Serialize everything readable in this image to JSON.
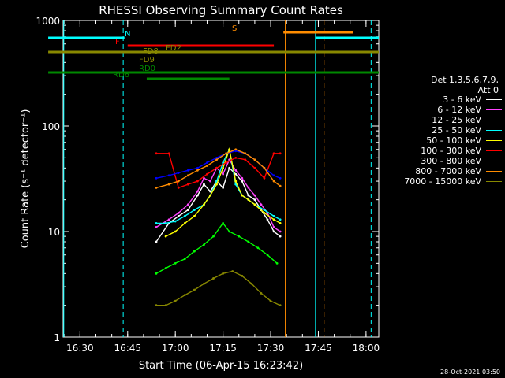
{
  "chart_data": {
    "type": "line",
    "title": "RHESSI Observing Summary Count Rates",
    "xlabel": "Start Time (06-Apr-15 16:23:42)",
    "ylabel": "Count Rate (s⁻¹ detector⁻¹)",
    "yscale": "log",
    "ylim": [
      1,
      1000
    ],
    "xlim_minutes_after_1620": [
      4.7,
      104
    ],
    "x_ticks": [
      "16:30",
      "16:45",
      "17:00",
      "17:15",
      "17:30",
      "17:45",
      "18:00"
    ],
    "y_ticks": [
      "1",
      "10",
      "100",
      "1000"
    ],
    "detectors_label": "Det 1,3,5,6,7,9,",
    "attenuator_label": "Att 0",
    "series": [
      {
        "name": "3 - 6 keV",
        "color": "#ffffff",
        "x": [
          34,
          38,
          41,
          44,
          47,
          49,
          51,
          53,
          55,
          57,
          59,
          61,
          63,
          65,
          67,
          69,
          71,
          73
        ],
        "y": [
          8,
          12,
          14,
          16,
          22,
          28,
          24,
          30,
          26,
          40,
          35,
          30,
          22,
          20,
          16,
          13,
          10,
          9
        ]
      },
      {
        "name": "6 - 12 keV",
        "color": "#ff44ff",
        "x": [
          34,
          38,
          41,
          44,
          47,
          49,
          51,
          53,
          55,
          57,
          59,
          61,
          63,
          65,
          67,
          69,
          71,
          73
        ],
        "y": [
          11,
          13,
          15,
          18,
          24,
          32,
          30,
          40,
          35,
          48,
          38,
          32,
          26,
          22,
          18,
          15,
          11,
          10
        ]
      },
      {
        "name": "12 - 25 keV",
        "color": "#00ff00",
        "x": [
          34,
          37,
          40,
          43,
          46,
          49,
          52,
          55,
          57,
          60,
          63,
          66,
          69,
          72
        ],
        "y": [
          4,
          4.5,
          5,
          5.5,
          6.5,
          7.5,
          9,
          12,
          10,
          9,
          8,
          7,
          6,
          5
        ]
      },
      {
        "name": "25 - 50 keV",
        "color": "#00ffff",
        "x": [
          34,
          37,
          40,
          43,
          46,
          49,
          51,
          53,
          55,
          57,
          59,
          61,
          63,
          65,
          68,
          71,
          73
        ],
        "y": [
          12,
          12,
          12.5,
          14,
          16,
          18,
          22,
          30,
          45,
          60,
          28,
          22,
          20,
          18,
          16,
          14,
          13
        ]
      },
      {
        "name": "50 - 100 keV",
        "color": "#ffff00",
        "x": [
          37,
          40,
          43,
          46,
          49,
          51,
          53,
          55,
          57,
          59,
          61,
          63,
          65,
          68,
          71,
          73
        ],
        "y": [
          9,
          10,
          12,
          14,
          18,
          22,
          28,
          40,
          60,
          30,
          22,
          20,
          18,
          15,
          13,
          12
        ]
      },
      {
        "name": "100 - 300 keV",
        "color": "#ff0000",
        "x": [
          34,
          38,
          41,
          44,
          47,
          50,
          53,
          56,
          59,
          62,
          65,
          68,
          71,
          73
        ],
        "y": [
          55,
          55,
          26,
          28,
          30,
          35,
          40,
          45,
          50,
          48,
          40,
          32,
          55,
          55
        ]
      },
      {
        "name": "300 - 800 keV",
        "color": "#0000ff",
        "x": [
          34,
          38,
          41,
          44,
          47,
          50,
          53,
          56,
          59,
          62,
          65,
          68,
          71,
          73
        ],
        "y": [
          32,
          34,
          36,
          38,
          40,
          45,
          50,
          55,
          58,
          55,
          48,
          40,
          34,
          32
        ]
      },
      {
        "name": "800 - 7000 keV",
        "color": "#ff8c00",
        "x": [
          34,
          38,
          41,
          44,
          47,
          50,
          53,
          56,
          59,
          62,
          65,
          68,
          71,
          73
        ],
        "y": [
          26,
          28,
          30,
          34,
          38,
          42,
          48,
          55,
          60,
          55,
          48,
          40,
          30,
          27
        ]
      },
      {
        "name": "7000 - 15000 keV",
        "color": "#888800",
        "x": [
          34,
          37,
          40,
          43,
          46,
          49,
          52,
          55,
          58,
          61,
          64,
          67,
          70,
          73
        ],
        "y": [
          2,
          2,
          2.2,
          2.5,
          2.8,
          3.2,
          3.6,
          4,
          4.2,
          3.8,
          3.2,
          2.6,
          2.2,
          2
        ]
      }
    ],
    "flag_bars": [
      {
        "label": "N",
        "color": "#00ffff",
        "x": [
          0,
          24
        ]
      },
      {
        "label": "N",
        "color": "#00ffff",
        "x": [
          84,
          104
        ]
      },
      {
        "label": "F",
        "color": "#ff0000",
        "x": [
          25,
          71
        ]
      },
      {
        "label": "S",
        "color": "#ff8c00",
        "x": [
          74,
          96
        ]
      },
      {
        "label": "FD2",
        "color": "#888800",
        "x": [
          0,
          104
        ]
      },
      {
        "label": "FD8",
        "color": "#888800",
        "x": []
      },
      {
        "label": "FD9",
        "color": "#888800",
        "x": []
      },
      {
        "label": "RD0",
        "color": "#008800",
        "x": [
          0,
          104
        ]
      },
      {
        "label": "RD6",
        "color": "#008800",
        "x": [
          31,
          57
        ]
      }
    ],
    "vertical_lines": [
      {
        "color": "#00ffff",
        "style": "solid",
        "x": 4.9
      },
      {
        "color": "#00ffff",
        "style": "dashed",
        "x": 23.6
      },
      {
        "color": "#ff8c00",
        "style": "solid",
        "x": 74.6
      },
      {
        "color": "#00ffff",
        "style": "solid",
        "x": 84.1
      },
      {
        "color": "#ff8c00",
        "style": "dashed",
        "x": 86.8
      },
      {
        "color": "#00ffff",
        "style": "dashed",
        "x": 101.6
      }
    ],
    "timestamp": "28-Oct-2021 03:50"
  }
}
